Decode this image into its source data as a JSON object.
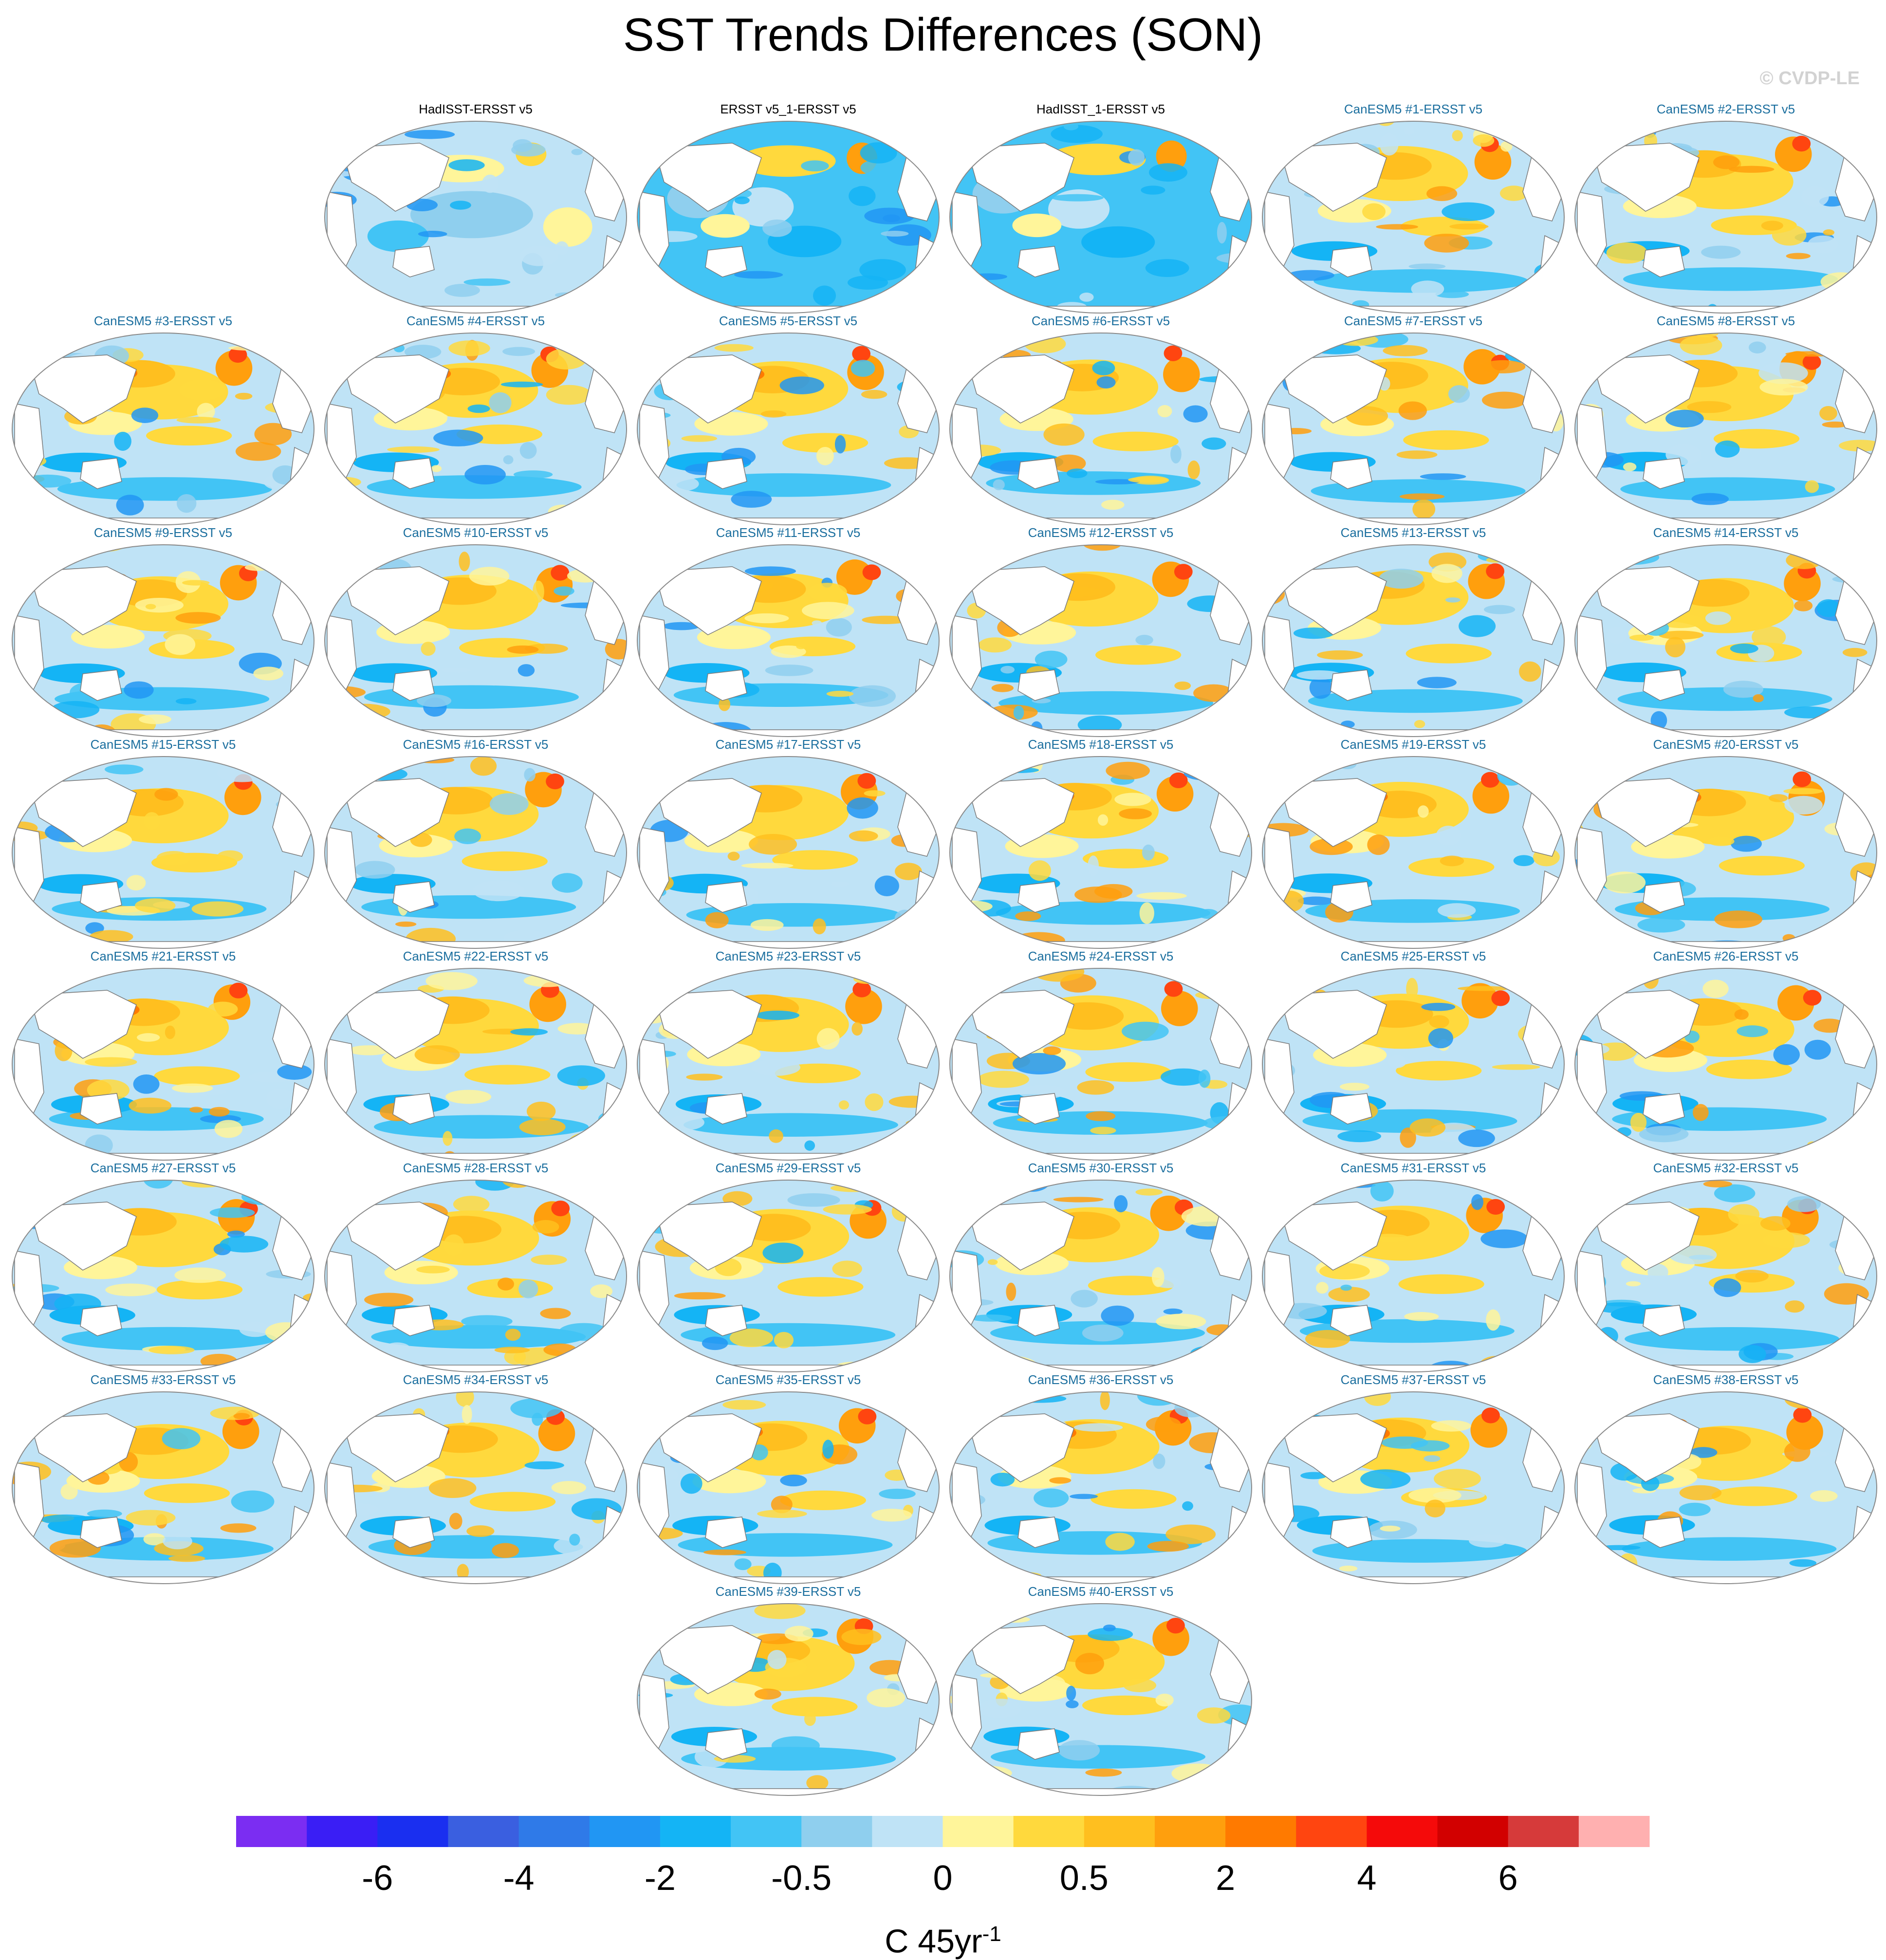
{
  "title": "SST Trends Differences (SON)",
  "watermark": "© CVDP-LE",
  "colors": {
    "observation_label": "#000000",
    "model_label": "#1a6e9e",
    "coastline": "#7a7a7a"
  },
  "panels": [
    {
      "label": "HadISST-ERSST v5",
      "kind": "obs",
      "pattern": "cool_mixed"
    },
    {
      "label": "ERSST v5_1-ERSST v5",
      "kind": "obs",
      "pattern": "cool_strong"
    },
    {
      "label": "HadISST_1-ERSST v5",
      "kind": "obs",
      "pattern": "cool_strong"
    },
    {
      "label": "CanESM5 #1-ERSST v5",
      "kind": "model",
      "pattern": "warm"
    },
    {
      "label": "CanESM5 #2-ERSST v5",
      "kind": "model",
      "pattern": "warm"
    },
    {
      "label": "CanESM5 #3-ERSST v5",
      "kind": "model",
      "pattern": "warm"
    },
    {
      "label": "CanESM5 #4-ERSST v5",
      "kind": "model",
      "pattern": "warm"
    },
    {
      "label": "CanESM5 #5-ERSST v5",
      "kind": "model",
      "pattern": "warm"
    },
    {
      "label": "CanESM5 #6-ERSST v5",
      "kind": "model",
      "pattern": "warm"
    },
    {
      "label": "CanESM5 #7-ERSST v5",
      "kind": "model",
      "pattern": "warm"
    },
    {
      "label": "CanESM5 #8-ERSST v5",
      "kind": "model",
      "pattern": "warm"
    },
    {
      "label": "CanESM5 #9-ERSST v5",
      "kind": "model",
      "pattern": "warm"
    },
    {
      "label": "CanESM5 #10-ERSST v5",
      "kind": "model",
      "pattern": "warm"
    },
    {
      "label": "CanESM5 #11-ERSST v5",
      "kind": "model",
      "pattern": "warm"
    },
    {
      "label": "CanESM5 #12-ERSST v5",
      "kind": "model",
      "pattern": "warm"
    },
    {
      "label": "CanESM5 #13-ERSST v5",
      "kind": "model",
      "pattern": "warm"
    },
    {
      "label": "CanESM5 #14-ERSST v5",
      "kind": "model",
      "pattern": "warm"
    },
    {
      "label": "CanESM5 #15-ERSST v5",
      "kind": "model",
      "pattern": "warm"
    },
    {
      "label": "CanESM5 #16-ERSST v5",
      "kind": "model",
      "pattern": "warm"
    },
    {
      "label": "CanESM5 #17-ERSST v5",
      "kind": "model",
      "pattern": "warm"
    },
    {
      "label": "CanESM5 #18-ERSST v5",
      "kind": "model",
      "pattern": "warm"
    },
    {
      "label": "CanESM5 #19-ERSST v5",
      "kind": "model",
      "pattern": "warm"
    },
    {
      "label": "CanESM5 #20-ERSST v5",
      "kind": "model",
      "pattern": "warm"
    },
    {
      "label": "CanESM5 #21-ERSST v5",
      "kind": "model",
      "pattern": "warm"
    },
    {
      "label": "CanESM5 #22-ERSST v5",
      "kind": "model",
      "pattern": "warm"
    },
    {
      "label": "CanESM5 #23-ERSST v5",
      "kind": "model",
      "pattern": "warm"
    },
    {
      "label": "CanESM5 #24-ERSST v5",
      "kind": "model",
      "pattern": "warm"
    },
    {
      "label": "CanESM5 #25-ERSST v5",
      "kind": "model",
      "pattern": "warm"
    },
    {
      "label": "CanESM5 #26-ERSST v5",
      "kind": "model",
      "pattern": "warm"
    },
    {
      "label": "CanESM5 #27-ERSST v5",
      "kind": "model",
      "pattern": "warm"
    },
    {
      "label": "CanESM5 #28-ERSST v5",
      "kind": "model",
      "pattern": "warm"
    },
    {
      "label": "CanESM5 #29-ERSST v5",
      "kind": "model",
      "pattern": "warm"
    },
    {
      "label": "CanESM5 #30-ERSST v5",
      "kind": "model",
      "pattern": "warm"
    },
    {
      "label": "CanESM5 #31-ERSST v5",
      "kind": "model",
      "pattern": "warm"
    },
    {
      "label": "CanESM5 #32-ERSST v5",
      "kind": "model",
      "pattern": "warm"
    },
    {
      "label": "CanESM5 #33-ERSST v5",
      "kind": "model",
      "pattern": "warm"
    },
    {
      "label": "CanESM5 #34-ERSST v5",
      "kind": "model",
      "pattern": "warm"
    },
    {
      "label": "CanESM5 #35-ERSST v5",
      "kind": "model",
      "pattern": "warm"
    },
    {
      "label": "CanESM5 #36-ERSST v5",
      "kind": "model",
      "pattern": "warm"
    },
    {
      "label": "CanESM5 #37-ERSST v5",
      "kind": "model",
      "pattern": "warm"
    },
    {
      "label": "CanESM5 #38-ERSST v5",
      "kind": "model",
      "pattern": "warm"
    },
    {
      "label": "CanESM5 #39-ERSST v5",
      "kind": "model",
      "pattern": "warm"
    },
    {
      "label": "CanESM5 #40-ERSST v5",
      "kind": "model",
      "pattern": "warm"
    }
  ],
  "colorbar": {
    "colors": [
      "#7b2df2",
      "#3a1ef5",
      "#1a2ff0",
      "#3a5fe0",
      "#2f7ae8",
      "#2196f3",
      "#14b4f5",
      "#42c4f5",
      "#8fcfee",
      "#bfe3f6",
      "#fff59a",
      "#ffd93d",
      "#ffbf1f",
      "#ff9f0d",
      "#ff7a00",
      "#ff4510",
      "#f50a0a",
      "#d20000",
      "#d63a3a",
      "#ffb0b0"
    ],
    "ticks": [
      {
        "label": "-6",
        "boundary": 2
      },
      {
        "label": "-4",
        "boundary": 4
      },
      {
        "label": "-2",
        "boundary": 6
      },
      {
        "label": "-0.5",
        "boundary": 8
      },
      {
        "label": "0",
        "boundary": 10
      },
      {
        "label": "0.5",
        "boundary": 12
      },
      {
        "label": "2",
        "boundary": 14
      },
      {
        "label": "4",
        "boundary": 16
      },
      {
        "label": "6",
        "boundary": 18
      }
    ],
    "units": "C 45yr",
    "units_superscript": "-1"
  }
}
